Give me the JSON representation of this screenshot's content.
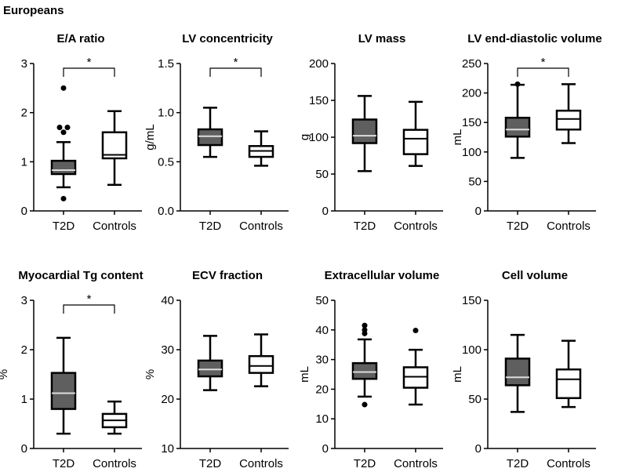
{
  "figure_title": "Europeans",
  "colors": {
    "t2d": "#5f5f5f",
    "controls": "#ffffff",
    "stroke": "#000000"
  },
  "chart_data": [
    {
      "type": "box",
      "title": "E/A ratio",
      "ylabel": "",
      "ylim": [
        0,
        3
      ],
      "ticks": [
        "0",
        "1",
        "2",
        "3"
      ],
      "categories": [
        "T2D",
        "Controls"
      ],
      "significance": "*",
      "boxes": [
        {
          "min": 0.48,
          "q1": 0.75,
          "median": 0.83,
          "q3": 1.02,
          "max": 1.4,
          "outliers": [
            2.5,
            1.7,
            1.7,
            1.6,
            0.25
          ]
        },
        {
          "min": 0.53,
          "q1": 1.07,
          "median": 1.14,
          "q3": 1.6,
          "max": 2.03,
          "outliers": []
        }
      ]
    },
    {
      "type": "box",
      "title": "LV concentricity",
      "ylabel": "g/mL",
      "ylim": [
        0,
        1.5
      ],
      "ticks": [
        "0.0",
        "0.5",
        "1.0",
        "1.5"
      ],
      "categories": [
        "T2D",
        "Controls"
      ],
      "significance": "*",
      "boxes": [
        {
          "min": 0.55,
          "q1": 0.67,
          "median": 0.76,
          "q3": 0.83,
          "max": 1.05,
          "outliers": []
        },
        {
          "min": 0.46,
          "q1": 0.55,
          "median": 0.61,
          "q3": 0.66,
          "max": 0.81,
          "outliers": []
        }
      ]
    },
    {
      "type": "box",
      "title": "LV mass",
      "ylabel": "g",
      "ylim": [
        0,
        200
      ],
      "ticks": [
        "0",
        "50",
        "100",
        "150",
        "200"
      ],
      "categories": [
        "T2D",
        "Controls"
      ],
      "significance": "",
      "boxes": [
        {
          "min": 54,
          "q1": 92,
          "median": 102,
          "q3": 124,
          "max": 156,
          "outliers": []
        },
        {
          "min": 61,
          "q1": 77,
          "median": 98,
          "q3": 110,
          "max": 148,
          "outliers": []
        }
      ]
    },
    {
      "type": "box",
      "title": "LV end-diastolic volume",
      "ylabel": "mL",
      "ylim": [
        0,
        250
      ],
      "ticks": [
        "0",
        "50",
        "100",
        "150",
        "200",
        "250"
      ],
      "categories": [
        "T2D",
        "Controls"
      ],
      "significance": "*",
      "boxes": [
        {
          "min": 90,
          "q1": 126,
          "median": 138,
          "q3": 158,
          "max": 214,
          "outliers": [
            215
          ]
        },
        {
          "min": 115,
          "q1": 138,
          "median": 156,
          "q3": 170,
          "max": 215,
          "outliers": []
        }
      ]
    },
    {
      "type": "box",
      "title": "Myocardial Tg content",
      "ylabel": "%",
      "ylim": [
        0,
        3
      ],
      "ticks": [
        "0",
        "1",
        "2",
        "3"
      ],
      "categories": [
        "T2D",
        "Controls"
      ],
      "significance": "*",
      "boxes": [
        {
          "min": 0.3,
          "q1": 0.8,
          "median": 1.12,
          "q3": 1.53,
          "max": 2.24,
          "outliers": []
        },
        {
          "min": 0.3,
          "q1": 0.43,
          "median": 0.57,
          "q3": 0.7,
          "max": 0.95,
          "outliers": []
        }
      ]
    },
    {
      "type": "box",
      "title": "ECV fraction",
      "ylabel": "%",
      "ylim": [
        10,
        40
      ],
      "ticks": [
        "10",
        "20",
        "30",
        "40"
      ],
      "categories": [
        "T2D",
        "Controls"
      ],
      "significance": "",
      "boxes": [
        {
          "min": 21.8,
          "q1": 24.6,
          "median": 26,
          "q3": 27.8,
          "max": 32.8,
          "outliers": []
        },
        {
          "min": 22.6,
          "q1": 25.3,
          "median": 26.7,
          "q3": 28.7,
          "max": 33.1,
          "outliers": []
        }
      ]
    },
    {
      "type": "box",
      "title": "Extracellular volume",
      "ylabel": "mL",
      "ylim": [
        0,
        50
      ],
      "ticks": [
        "0",
        "10",
        "20",
        "30",
        "40",
        "50"
      ],
      "categories": [
        "T2D",
        "Controls"
      ],
      "significance": "",
      "boxes": [
        {
          "min": 17.5,
          "q1": 23.5,
          "median": 25.8,
          "q3": 28.8,
          "max": 36.8,
          "outliers": [
            41.5,
            40,
            38.8,
            14.8
          ]
        },
        {
          "min": 14.8,
          "q1": 20.5,
          "median": 24.2,
          "q3": 27.4,
          "max": 33.3,
          "outliers": [
            39.8
          ]
        }
      ]
    },
    {
      "type": "box",
      "title": "Cell volume",
      "ylabel": "mL",
      "ylim": [
        0,
        150
      ],
      "ticks": [
        "0",
        "50",
        "100",
        "150"
      ],
      "categories": [
        "T2D",
        "Controls"
      ],
      "significance": "",
      "boxes": [
        {
          "min": 37,
          "q1": 64,
          "median": 72,
          "q3": 91,
          "max": 115,
          "outliers": []
        },
        {
          "min": 42,
          "q1": 51,
          "median": 70,
          "q3": 80,
          "max": 109,
          "outliers": []
        }
      ]
    }
  ]
}
